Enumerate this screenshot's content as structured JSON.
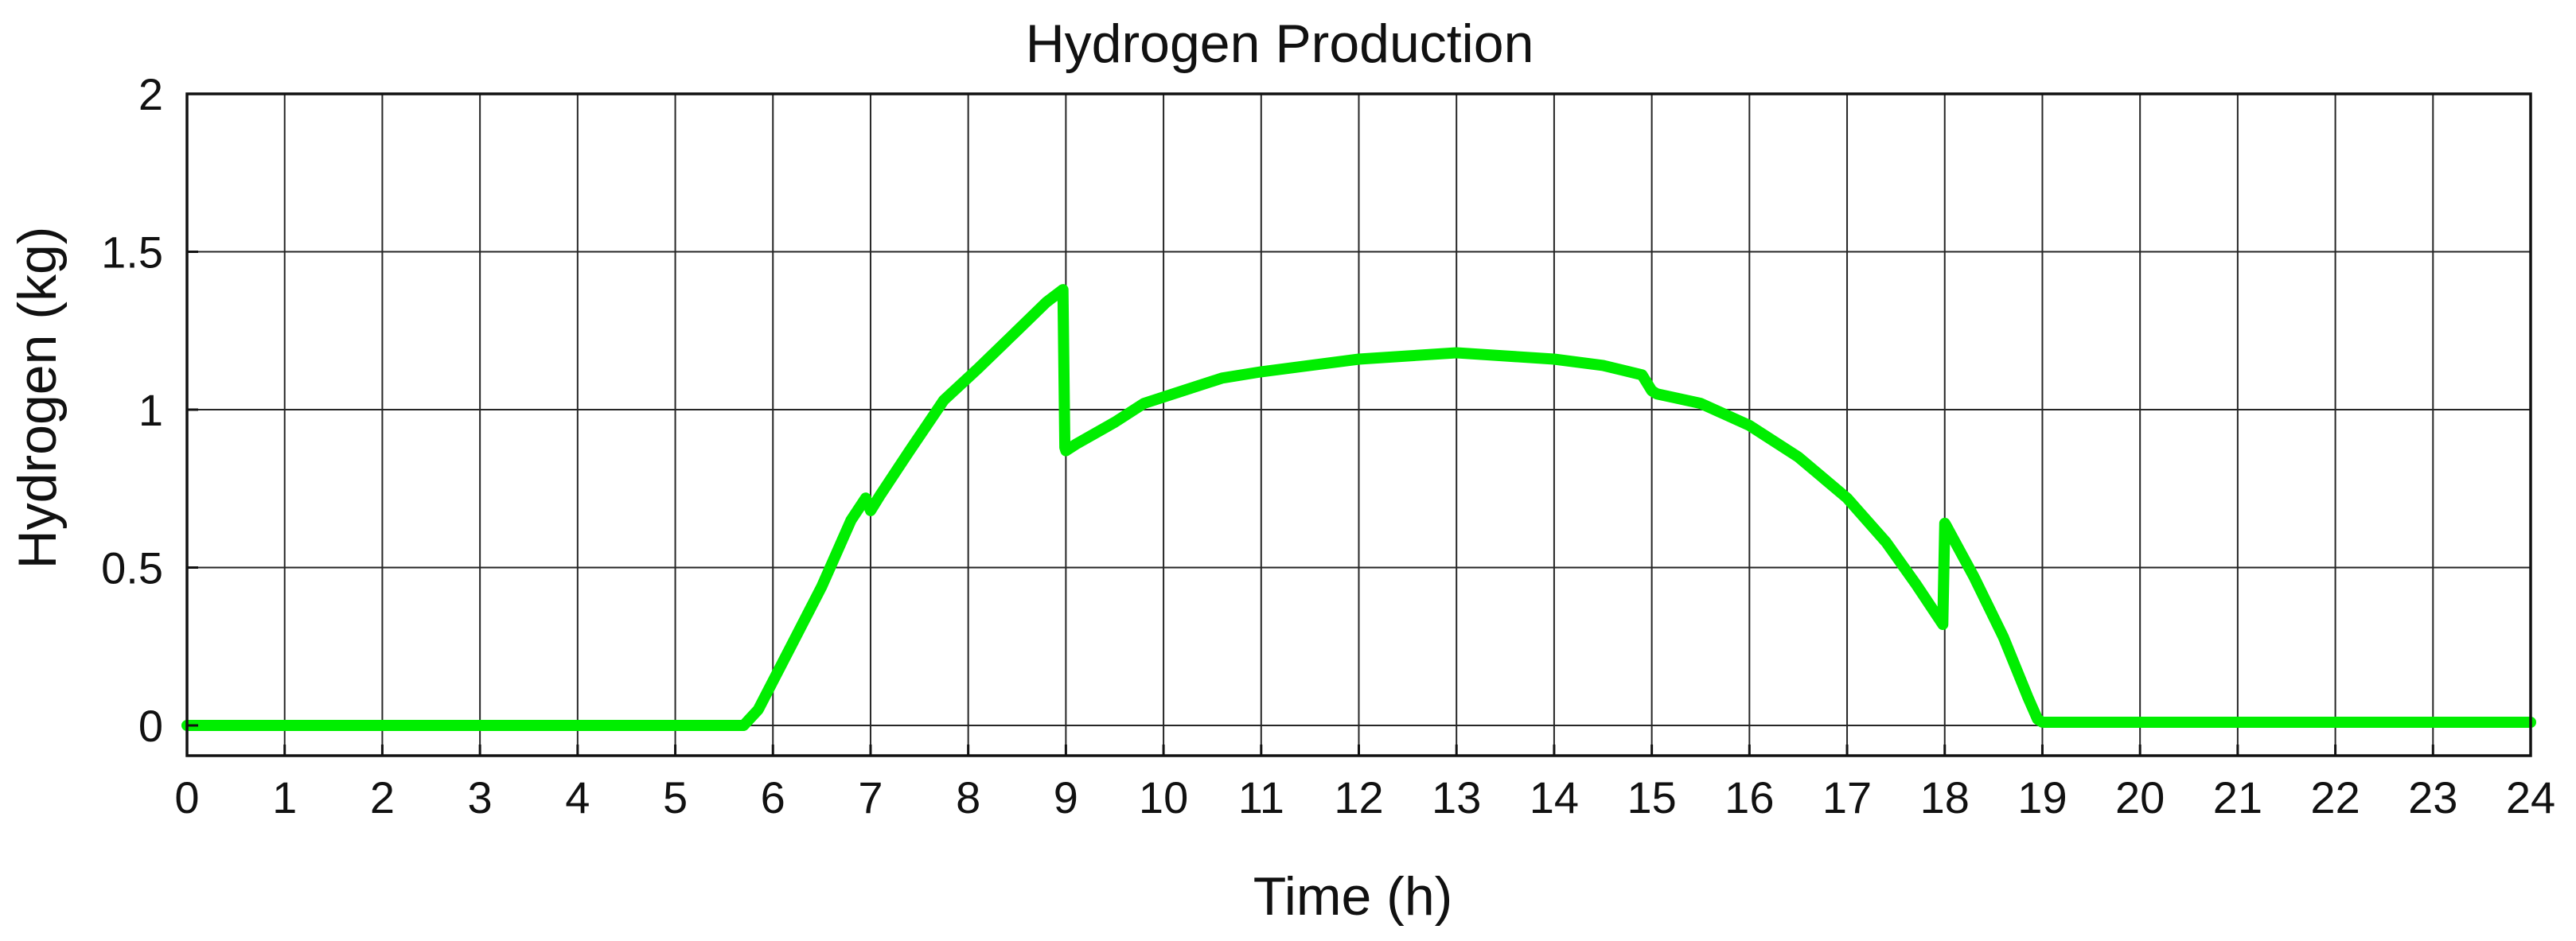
{
  "chart_data": {
    "type": "line",
    "title": "Hydrogen Production",
    "xlabel": "Time (h)",
    "ylabel": "Hydrogen (kg)",
    "xlim": [
      0,
      24
    ],
    "ylim": [
      0,
      2
    ],
    "xticks": [
      0,
      1,
      2,
      3,
      4,
      5,
      6,
      7,
      8,
      9,
      10,
      11,
      12,
      13,
      14,
      15,
      16,
      17,
      18,
      19,
      20,
      21,
      22,
      23,
      24
    ],
    "yticks": [
      0,
      0.5,
      1,
      1.5,
      2
    ],
    "xtick_labels": [
      "0",
      "1",
      "2",
      "3",
      "4",
      "5",
      "6",
      "7",
      "8",
      "9",
      "10",
      "11",
      "12",
      "13",
      "14",
      "15",
      "16",
      "17",
      "18",
      "19",
      "20",
      "21",
      "22",
      "23",
      "24"
    ],
    "ytick_labels": [
      "0",
      "0.5",
      "1",
      "1.5",
      "2"
    ],
    "grid": true,
    "series": [
      {
        "color": "#00ee00",
        "x": [
          0,
          5.7,
          5.85,
          6.2,
          6.5,
          6.8,
          6.95,
          7.0,
          7.1,
          7.4,
          7.75,
          8.1,
          8.5,
          8.8,
          8.97,
          8.99,
          9.0,
          9.1,
          9.5,
          9.8,
          10.2,
          10.6,
          11.0,
          11.5,
          12.0,
          12.5,
          13.0,
          13.5,
          14.0,
          14.5,
          14.9,
          15.0,
          15.05,
          15.5,
          16.0,
          16.5,
          17.0,
          17.4,
          17.7,
          17.98,
          18.0,
          18.02,
          18.3,
          18.6,
          18.85,
          18.95,
          19.0,
          24
        ],
        "y": [
          0,
          0,
          0.05,
          0.26,
          0.44,
          0.65,
          0.72,
          0.68,
          0.73,
          0.87,
          1.03,
          1.13,
          1.25,
          1.34,
          1.38,
          0.88,
          0.87,
          0.89,
          0.96,
          1.02,
          1.06,
          1.1,
          1.12,
          1.14,
          1.16,
          1.17,
          1.18,
          1.17,
          1.16,
          1.14,
          1.11,
          1.06,
          1.05,
          1.02,
          0.95,
          0.85,
          0.72,
          0.58,
          0.45,
          0.32,
          0.64,
          0.63,
          0.47,
          0.28,
          0.09,
          0.02,
          0.01,
          0.01
        ]
      }
    ]
  }
}
